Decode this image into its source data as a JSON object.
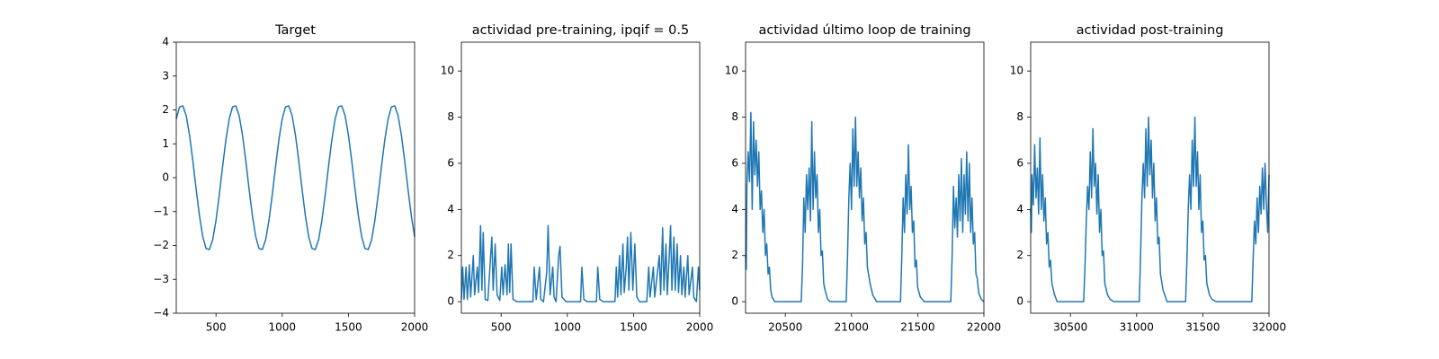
{
  "chart_data": [
    {
      "type": "line",
      "title": "Target",
      "color": "#1f77b4",
      "x": [
        200,
        225,
        250,
        275,
        300,
        325,
        350,
        375,
        400,
        425,
        450,
        475,
        500,
        525,
        550,
        575,
        600,
        625,
        650,
        675,
        700,
        725,
        750,
        775,
        800,
        825,
        850,
        875,
        900,
        925,
        950,
        975,
        1000,
        1025,
        1050,
        1075,
        1100,
        1125,
        1150,
        1175,
        1200,
        1225,
        1250,
        1275,
        1300,
        1325,
        1350,
        1375,
        1400,
        1425,
        1450,
        1475,
        1500,
        1525,
        1550,
        1575,
        1600,
        1625,
        1650,
        1675,
        1700,
        1725,
        1750,
        1775,
        1800,
        1825,
        1850,
        1875,
        1900,
        1925,
        1950,
        1975,
        2000
      ],
      "values": [
        1.74,
        2.09,
        2.12,
        1.83,
        1.26,
        0.5,
        -0.34,
        -1.12,
        -1.74,
        -2.09,
        -2.12,
        -1.83,
        -1.26,
        -0.5,
        0.34,
        1.12,
        1.74,
        2.09,
        2.12,
        1.83,
        1.26,
        0.5,
        -0.34,
        -1.12,
        -1.74,
        -2.09,
        -2.12,
        -1.83,
        -1.26,
        -0.5,
        0.34,
        1.12,
        1.74,
        2.09,
        2.12,
        1.83,
        1.26,
        0.5,
        -0.34,
        -1.12,
        -1.74,
        -2.09,
        -2.12,
        -1.83,
        -1.26,
        -0.5,
        0.34,
        1.12,
        1.74,
        2.09,
        2.12,
        1.83,
        1.26,
        0.5,
        -0.34,
        -1.12,
        -1.74,
        -2.09,
        -2.12,
        -1.83,
        -1.26,
        -0.5,
        0.34,
        1.12,
        1.74,
        2.09,
        2.12,
        1.83,
        1.26,
        0.5,
        -0.34,
        -1.12,
        -1.74
      ],
      "xlim": [
        200,
        2000
      ],
      "xticks": [
        500,
        1000,
        1500,
        2000
      ],
      "ylim": [
        -4,
        4
      ],
      "yticks": [
        {
          "value": -4,
          "label": "−4"
        },
        {
          "value": -3,
          "label": "−3"
        },
        {
          "value": -2,
          "label": "−2"
        },
        {
          "value": -1,
          "label": "−1"
        },
        0,
        1,
        2,
        3,
        4
      ]
    },
    {
      "type": "line",
      "title": "actividad pre-training, ipqif = 0.5",
      "color": "#1f77b4",
      "x": [
        200,
        210,
        220,
        235,
        245,
        260,
        270,
        290,
        300,
        320,
        330,
        345,
        355,
        365,
        380,
        400,
        430,
        440,
        455,
        470,
        490,
        505,
        515,
        530,
        545,
        555,
        565,
        575,
        590,
        620,
        740,
        750,
        765,
        790,
        800,
        820,
        845,
        855,
        870,
        890,
        900,
        915,
        935,
        945,
        960,
        990,
        1100,
        1110,
        1125,
        1150,
        1220,
        1230,
        1245,
        1270,
        1360,
        1370,
        1380,
        1395,
        1405,
        1420,
        1430,
        1445,
        1455,
        1465,
        1480,
        1495,
        1510,
        1525,
        1545,
        1600,
        1615,
        1625,
        1650,
        1660,
        1685,
        1695,
        1705,
        1720,
        1730,
        1745,
        1755,
        1770,
        1780,
        1790,
        1805,
        1815,
        1830,
        1840,
        1855,
        1865,
        1880,
        1890,
        1910,
        1920,
        1945,
        1955,
        1975,
        1990,
        2000
      ],
      "values": [
        0.1,
        1.5,
        0.1,
        1.5,
        0.1,
        1.6,
        0.2,
        2.0,
        0.3,
        1.5,
        0.4,
        3.3,
        0.5,
        3.0,
        0.1,
        0.05,
        2.8,
        0.5,
        2.5,
        0.3,
        0.05,
        1.5,
        0.3,
        1.6,
        0.3,
        2.5,
        0.4,
        2.5,
        0.1,
        0,
        0,
        1.5,
        0.1,
        1.5,
        0.1,
        0,
        1.3,
        3.3,
        0.3,
        1.5,
        0.2,
        0,
        2.0,
        2.4,
        0.2,
        0,
        0,
        1.5,
        0.1,
        0,
        0,
        1.5,
        0.1,
        0,
        0,
        1.5,
        0.2,
        2.0,
        0.3,
        2.5,
        0.4,
        1.5,
        2.8,
        0.5,
        3.0,
        0.5,
        2.5,
        0.2,
        0,
        0,
        1.5,
        0.2,
        1.5,
        0.2,
        1.5,
        2.0,
        0.3,
        3.2,
        0.5,
        2.5,
        0.3,
        2.0,
        3.3,
        0.5,
        2.8,
        0.5,
        2.5,
        0.4,
        2.0,
        0.3,
        1.5,
        0.2,
        2.0,
        0.3,
        1.5,
        0.2,
        0,
        1.5,
        0.5
      ],
      "xlim": [
        200,
        2000
      ],
      "xticks": [
        500,
        1000,
        1500,
        2000
      ],
      "ylim": [
        -0.5,
        11.25
      ],
      "yticks": [
        0,
        2,
        4,
        6,
        8,
        10
      ]
    },
    {
      "type": "line",
      "title": "actividad último loop de training",
      "color": "#1f77b4",
      "x": [
        20200,
        20205,
        20210,
        20220,
        20230,
        20240,
        20250,
        20260,
        20270,
        20280,
        20290,
        20300,
        20310,
        20320,
        20330,
        20340,
        20350,
        20360,
        20370,
        20380,
        20390,
        20400,
        20420,
        20620,
        20630,
        20640,
        20650,
        20660,
        20670,
        20680,
        20690,
        20700,
        20710,
        20720,
        20730,
        20740,
        20750,
        20760,
        20770,
        20780,
        20790,
        20800,
        20820,
        20840,
        20960,
        20970,
        20980,
        20990,
        21000,
        21010,
        21020,
        21030,
        21040,
        21050,
        21060,
        21070,
        21080,
        21090,
        21100,
        21110,
        21120,
        21140,
        21160,
        21190,
        21370,
        21380,
        21390,
        21400,
        21410,
        21420,
        21430,
        21440,
        21450,
        21460,
        21470,
        21480,
        21490,
        21500,
        21520,
        21550,
        21750,
        21760,
        21770,
        21780,
        21790,
        21800,
        21810,
        21820,
        21830,
        21840,
        21850,
        21860,
        21870,
        21880,
        21890,
        21900,
        21910,
        21920,
        21930,
        21940,
        21950,
        21960,
        21980,
        22000
      ],
      "values": [
        2.0,
        1.4,
        5.0,
        6.5,
        5.2,
        8.2,
        4.0,
        7.8,
        5.5,
        7.0,
        5.0,
        6.5,
        4.0,
        4.8,
        3.0,
        4.0,
        2.0,
        2.5,
        1.2,
        1.5,
        0.5,
        0.2,
        0,
        0,
        1.5,
        4.5,
        3.0,
        5.5,
        4.0,
        5.8,
        3.5,
        7.8,
        4.0,
        6.5,
        4.5,
        5.5,
        3.0,
        4.0,
        2.0,
        2.2,
        0.8,
        0.5,
        0.1,
        0,
        0,
        2.0,
        4.5,
        6.0,
        4.0,
        7.5,
        5.0,
        8.0,
        5.0,
        6.5,
        4.5,
        5.8,
        3.5,
        4.5,
        2.5,
        3.0,
        1.5,
        0.8,
        0.3,
        0,
        0,
        2.0,
        4.5,
        3.0,
        5.5,
        3.8,
        6.8,
        4.0,
        5.0,
        3.0,
        3.5,
        1.5,
        1.8,
        0.6,
        0.2,
        0,
        0,
        2.0,
        5.0,
        3.2,
        4.5,
        2.8,
        5.5,
        3.5,
        6.2,
        3.0,
        5.5,
        3.8,
        6.5,
        3.5,
        6.0,
        3.0,
        4.5,
        2.5,
        3.0,
        1.2,
        1.0,
        0.4,
        0.1,
        0
      ],
      "xlim": [
        20200,
        22000
      ],
      "xticks": [
        20500,
        21000,
        21500,
        22000
      ],
      "ylim": [
        -0.5,
        11.25
      ],
      "yticks": [
        0,
        2,
        4,
        6,
        8,
        10
      ]
    },
    {
      "type": "line",
      "title": "actividad post-training",
      "color": "#1f77b4",
      "x": [
        30200,
        30205,
        30210,
        30220,
        30230,
        30240,
        30250,
        30260,
        30270,
        30280,
        30290,
        30300,
        30310,
        30320,
        30330,
        30340,
        30350,
        30360,
        30380,
        30400,
        30600,
        30610,
        30620,
        30630,
        30640,
        30650,
        30660,
        30670,
        30680,
        30690,
        30700,
        30710,
        30720,
        30730,
        30740,
        30750,
        30760,
        30780,
        30800,
        30830,
        31020,
        31030,
        31040,
        31050,
        31060,
        31070,
        31080,
        31090,
        31100,
        31110,
        31120,
        31130,
        31140,
        31150,
        31160,
        31170,
        31180,
        31200,
        31230,
        31370,
        31380,
        31390,
        31400,
        31410,
        31420,
        31430,
        31440,
        31450,
        31460,
        31470,
        31480,
        31490,
        31500,
        31510,
        31520,
        31530,
        31550,
        31570,
        31600,
        31870,
        31880,
        31890,
        31900,
        31910,
        31920,
        31930,
        31940,
        31950,
        31960,
        31970,
        31980,
        31990,
        32000
      ],
      "values": [
        4.0,
        3.0,
        5.5,
        4.2,
        6.8,
        4.5,
        5.8,
        3.8,
        7.1,
        4.0,
        5.5,
        3.5,
        4.5,
        2.5,
        3.0,
        1.5,
        1.8,
        0.8,
        0.3,
        0,
        0,
        1.5,
        3.5,
        5.0,
        4.0,
        6.5,
        4.5,
        7.5,
        5.0,
        6.0,
        3.8,
        5.5,
        3.0,
        4.0,
        2.0,
        2.2,
        0.8,
        0.3,
        0.1,
        0,
        0,
        2.0,
        4.5,
        6.0,
        4.5,
        7.5,
        5.0,
        8.0,
        5.5,
        7.0,
        4.5,
        6.0,
        3.5,
        4.5,
        2.5,
        2.8,
        1.2,
        0.5,
        0,
        0,
        1.8,
        4.0,
        5.5,
        4.0,
        7.0,
        5.0,
        8.0,
        5.0,
        6.5,
        4.0,
        5.5,
        3.0,
        3.5,
        1.8,
        2.0,
        0.8,
        0.3,
        0.1,
        0,
        0,
        1.8,
        3.5,
        2.5,
        4.5,
        3.0,
        5.0,
        3.8,
        5.8,
        4.0,
        6.0,
        4.2,
        3.0,
        5.5
      ],
      "xlim": [
        30200,
        32000
      ],
      "xticks": [
        30500,
        31000,
        31500,
        32000
      ],
      "ylim": [
        -0.5,
        11.25
      ],
      "yticks": [
        0,
        2,
        4,
        6,
        8,
        10
      ]
    }
  ]
}
